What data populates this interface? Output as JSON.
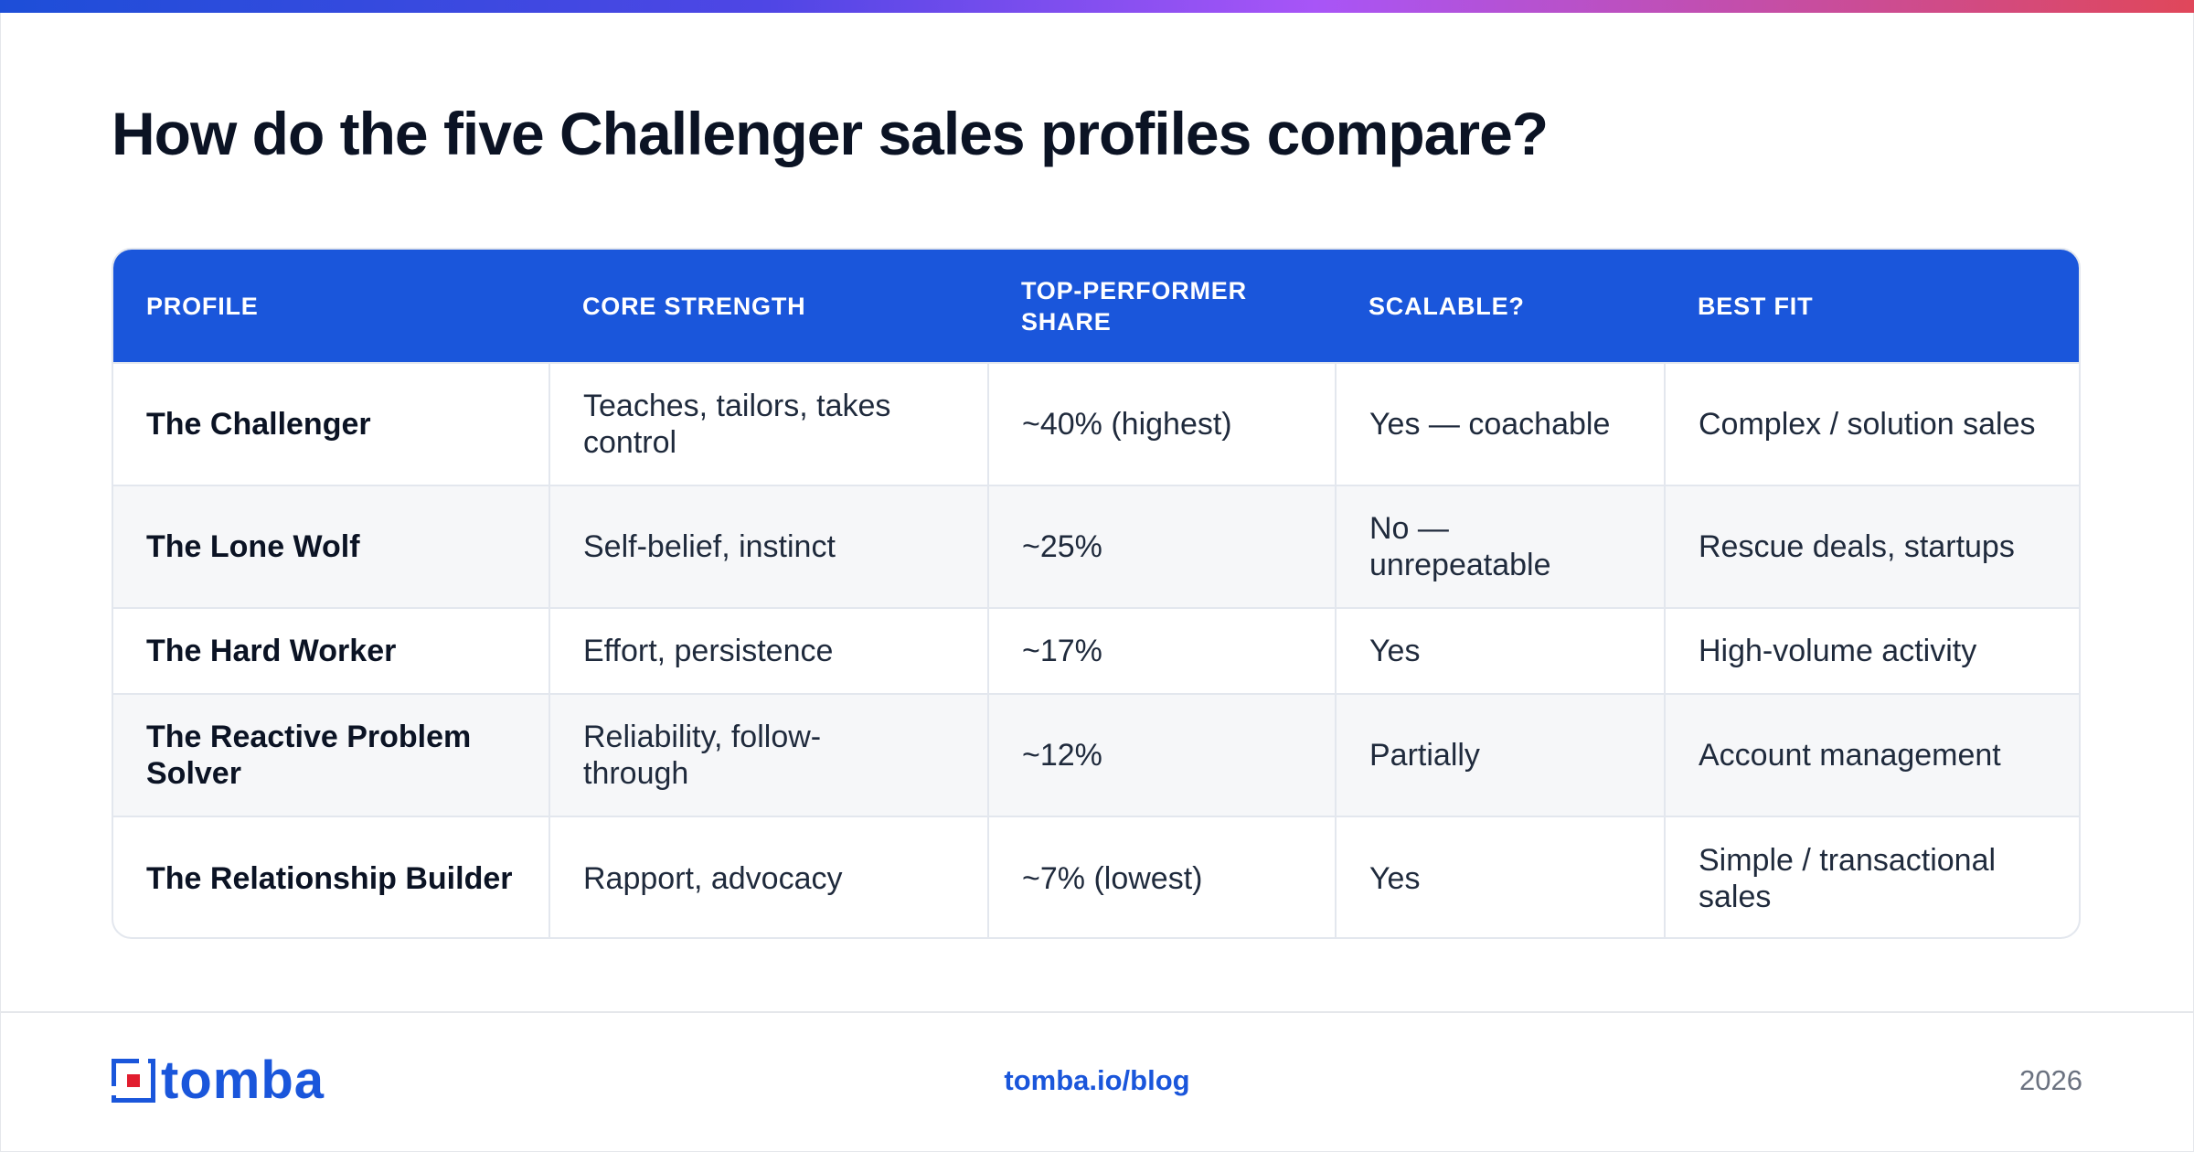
{
  "title": "How do the five Challenger sales profiles compare?",
  "table": {
    "headers": [
      "PROFILE",
      "CORE STRENGTH",
      "TOP-PERFORMER SHARE",
      "SCALABLE?",
      "BEST FIT"
    ],
    "rows": [
      [
        "The Challenger",
        "Teaches, tailors, takes control",
        "~40% (highest)",
        "Yes — coachable",
        "Complex / solution sales"
      ],
      [
        "The Lone Wolf",
        "Self-belief, instinct",
        "~25%",
        "No — unrepeatable",
        "Rescue deals, startups"
      ],
      [
        "The Hard Worker",
        "Effort, persistence",
        "~17%",
        "Yes",
        "High-volume activity"
      ],
      [
        "The Reactive Problem Solver",
        "Reliability, follow-through",
        "~12%",
        "Partially",
        "Account management"
      ],
      [
        "The Relationship Builder",
        "Rapport, advocacy",
        "~7% (lowest)",
        "Yes",
        "Simple / transactional sales"
      ]
    ]
  },
  "footer": {
    "logo_text": "tomba",
    "link": "tomba.io/blog",
    "year": "2026"
  },
  "colors": {
    "accent": "#1a56db",
    "header_bg": "#1a56db",
    "logo_red": "#e11d2e"
  }
}
